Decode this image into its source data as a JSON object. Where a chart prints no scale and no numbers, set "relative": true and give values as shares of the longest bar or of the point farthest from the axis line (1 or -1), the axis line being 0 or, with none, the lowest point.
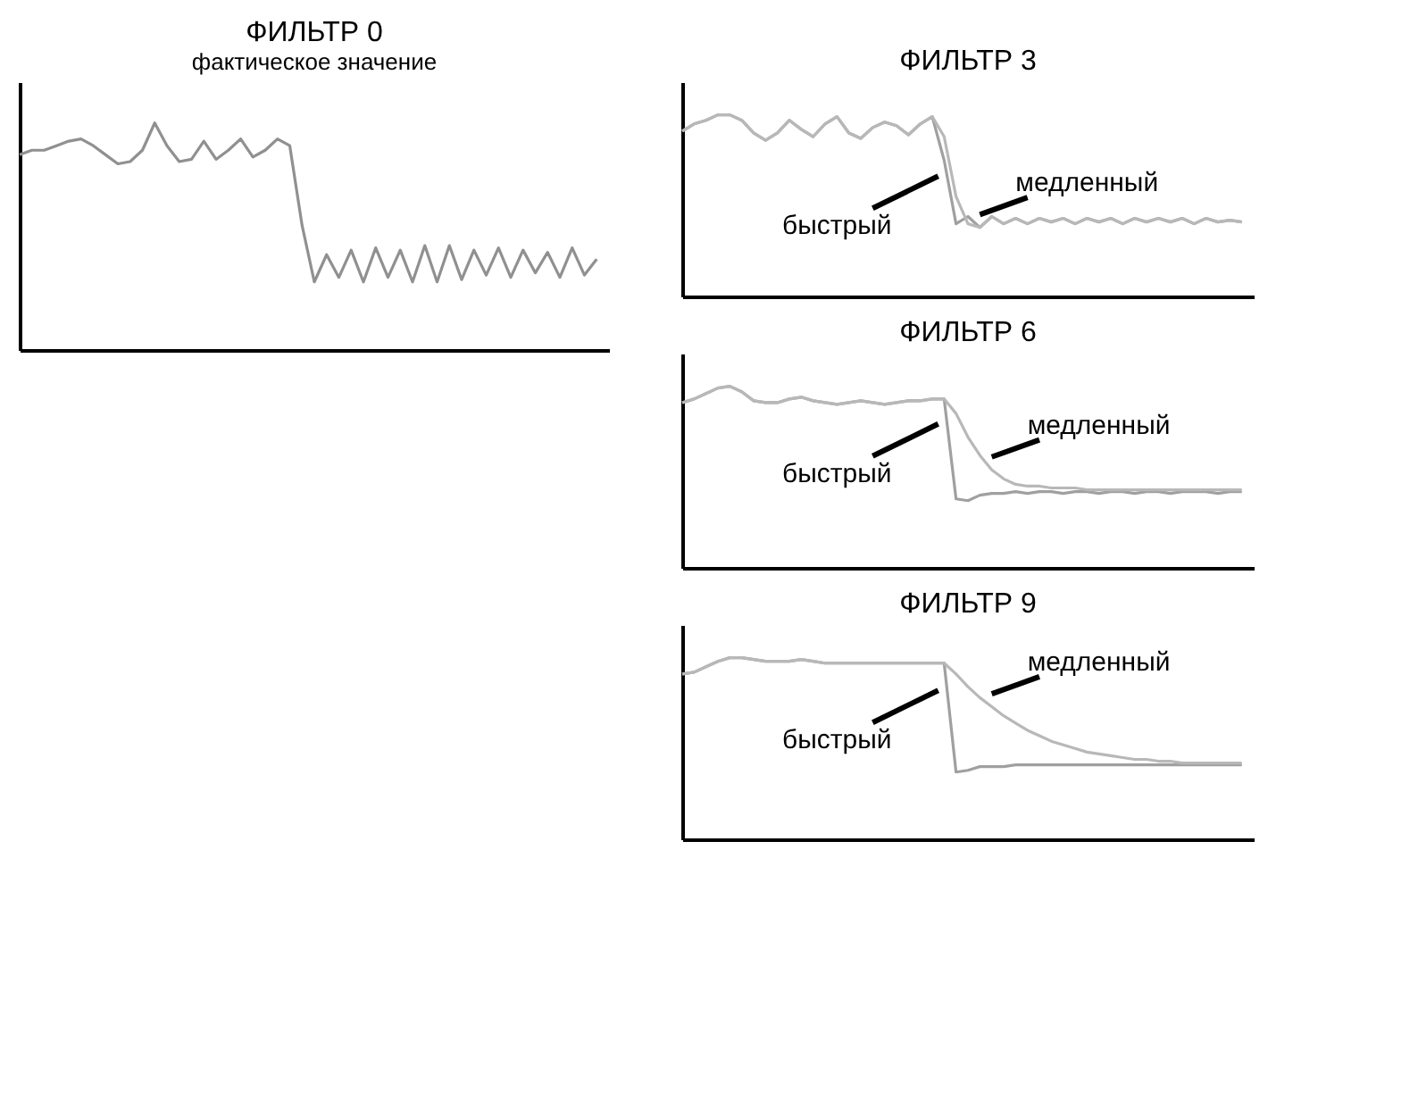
{
  "chart_data": [
    {
      "type": "line",
      "title": "ФИЛЬТР 0",
      "subtitle": "фактическое значение",
      "relative": true,
      "tick_labels": false,
      "grid": false,
      "categories": [
        null,
        null,
        null,
        null,
        null,
        null,
        null,
        null,
        null,
        null,
        null,
        null,
        null,
        null,
        null,
        null,
        null,
        null,
        null,
        null,
        null,
        null,
        null,
        null,
        null,
        null,
        null,
        null,
        null,
        null,
        null,
        null,
        null,
        null,
        null,
        null,
        null,
        null,
        null,
        null,
        null,
        null,
        null,
        null,
        null,
        null,
        null,
        null
      ],
      "color": "#909090",
      "values": [
        0.86,
        0.88,
        0.88,
        0.9,
        0.92,
        0.93,
        0.9,
        0.86,
        0.82,
        0.83,
        0.88,
        1.0,
        0.9,
        0.83,
        0.84,
        0.92,
        0.84,
        0.88,
        0.93,
        0.85,
        0.88,
        0.93,
        0.9,
        0.55,
        0.3,
        0.42,
        0.32,
        0.44,
        0.3,
        0.45,
        0.32,
        0.44,
        0.3,
        0.46,
        0.3,
        0.46,
        0.31,
        0.44,
        0.33,
        0.45,
        0.32,
        0.44,
        0.34,
        0.43,
        0.32,
        0.45,
        0.33,
        0.4
      ]
    },
    {
      "type": "line",
      "title": "ФИЛЬТР 3",
      "relative": true,
      "tick_labels": false,
      "grid": false,
      "categories": [
        null,
        null,
        null,
        null,
        null,
        null,
        null,
        null,
        null,
        null,
        null,
        null,
        null,
        null,
        null,
        null,
        null,
        null,
        null,
        null,
        null,
        null,
        null,
        null,
        null,
        null,
        null,
        null,
        null,
        null,
        null,
        null,
        null,
        null,
        null,
        null,
        null,
        null,
        null,
        null,
        null,
        null,
        null,
        null,
        null,
        null,
        null,
        null
      ],
      "series": [
        {
          "name": "быстрый",
          "color": "#a0a0a0",
          "values": [
            0.91,
            0.95,
            0.97,
            1.0,
            1.0,
            0.97,
            0.9,
            0.86,
            0.9,
            0.97,
            0.92,
            0.88,
            0.95,
            0.99,
            0.9,
            0.87,
            0.93,
            0.96,
            0.94,
            0.89,
            0.95,
            0.99,
            0.75,
            0.4,
            0.44,
            0.38,
            0.44,
            0.4,
            0.43,
            0.4,
            0.43,
            0.41,
            0.43,
            0.4,
            0.43,
            0.41,
            0.43,
            0.4,
            0.43,
            0.41,
            0.43,
            0.41,
            0.43,
            0.4,
            0.43,
            0.41,
            0.42,
            0.41
          ]
        },
        {
          "name": "медленный",
          "color": "#b8b8b8",
          "values": [
            0.91,
            0.95,
            0.97,
            1.0,
            1.0,
            0.97,
            0.9,
            0.86,
            0.9,
            0.97,
            0.92,
            0.88,
            0.95,
            0.99,
            0.9,
            0.87,
            0.93,
            0.96,
            0.94,
            0.89,
            0.95,
            0.99,
            0.88,
            0.55,
            0.4,
            0.38,
            0.44,
            0.4,
            0.43,
            0.4,
            0.43,
            0.41,
            0.43,
            0.4,
            0.43,
            0.41,
            0.43,
            0.4,
            0.43,
            0.41,
            0.43,
            0.41,
            0.43,
            0.4,
            0.43,
            0.41,
            0.42,
            0.41
          ]
        }
      ]
    },
    {
      "type": "line",
      "title": "ФИЛЬТР 6",
      "relative": true,
      "tick_labels": false,
      "grid": false,
      "categories": [
        null,
        null,
        null,
        null,
        null,
        null,
        null,
        null,
        null,
        null,
        null,
        null,
        null,
        null,
        null,
        null,
        null,
        null,
        null,
        null,
        null,
        null,
        null,
        null,
        null,
        null,
        null,
        null,
        null,
        null,
        null,
        null,
        null,
        null,
        null,
        null,
        null,
        null,
        null,
        null,
        null,
        null,
        null,
        null,
        null,
        null,
        null,
        null
      ],
      "series": [
        {
          "name": "быстрый",
          "color": "#a0a0a0",
          "values": [
            0.91,
            0.93,
            0.96,
            0.99,
            1.0,
            0.97,
            0.92,
            0.91,
            0.91,
            0.93,
            0.94,
            0.92,
            0.91,
            0.9,
            0.91,
            0.92,
            0.91,
            0.9,
            0.91,
            0.92,
            0.92,
            0.93,
            0.93,
            0.38,
            0.37,
            0.4,
            0.41,
            0.41,
            0.42,
            0.41,
            0.42,
            0.42,
            0.41,
            0.42,
            0.42,
            0.41,
            0.42,
            0.42,
            0.41,
            0.42,
            0.42,
            0.41,
            0.42,
            0.42,
            0.42,
            0.41,
            0.42,
            0.42
          ]
        },
        {
          "name": "медленный",
          "color": "#b8b8b8",
          "values": [
            0.91,
            0.93,
            0.96,
            0.99,
            1.0,
            0.97,
            0.92,
            0.91,
            0.91,
            0.93,
            0.94,
            0.92,
            0.91,
            0.9,
            0.91,
            0.92,
            0.91,
            0.9,
            0.91,
            0.92,
            0.92,
            0.93,
            0.93,
            0.85,
            0.72,
            0.62,
            0.54,
            0.49,
            0.46,
            0.45,
            0.45,
            0.44,
            0.44,
            0.44,
            0.43,
            0.43,
            0.43,
            0.43,
            0.43,
            0.43,
            0.43,
            0.43,
            0.43,
            0.43,
            0.43,
            0.43,
            0.43,
            0.43
          ]
        }
      ]
    },
    {
      "type": "line",
      "title": "ФИЛЬТР 9",
      "relative": true,
      "tick_labels": false,
      "grid": false,
      "categories": [
        null,
        null,
        null,
        null,
        null,
        null,
        null,
        null,
        null,
        null,
        null,
        null,
        null,
        null,
        null,
        null,
        null,
        null,
        null,
        null,
        null,
        null,
        null,
        null,
        null,
        null,
        null,
        null,
        null,
        null,
        null,
        null,
        null,
        null,
        null,
        null,
        null,
        null,
        null,
        null,
        null,
        null,
        null,
        null,
        null,
        null,
        null,
        null
      ],
      "series": [
        {
          "name": "быстрый",
          "color": "#a0a0a0",
          "values": [
            0.91,
            0.92,
            0.95,
            0.98,
            1.0,
            1.0,
            0.99,
            0.98,
            0.98,
            0.98,
            0.99,
            0.98,
            0.97,
            0.97,
            0.97,
            0.97,
            0.97,
            0.97,
            0.97,
            0.97,
            0.97,
            0.97,
            0.97,
            0.37,
            0.38,
            0.4,
            0.4,
            0.4,
            0.41,
            0.41,
            0.41,
            0.41,
            0.41,
            0.41,
            0.41,
            0.41,
            0.41,
            0.41,
            0.41,
            0.41,
            0.41,
            0.41,
            0.41,
            0.41,
            0.41,
            0.41,
            0.41,
            0.41
          ]
        },
        {
          "name": "медленный",
          "color": "#b8b8b8",
          "values": [
            0.91,
            0.92,
            0.95,
            0.98,
            1.0,
            1.0,
            0.99,
            0.98,
            0.98,
            0.98,
            0.99,
            0.98,
            0.97,
            0.97,
            0.97,
            0.97,
            0.97,
            0.97,
            0.97,
            0.97,
            0.97,
            0.97,
            0.97,
            0.91,
            0.84,
            0.78,
            0.73,
            0.68,
            0.64,
            0.6,
            0.57,
            0.54,
            0.52,
            0.5,
            0.48,
            0.47,
            0.46,
            0.45,
            0.44,
            0.44,
            0.43,
            0.43,
            0.42,
            0.42,
            0.42,
            0.42,
            0.42,
            0.42
          ]
        }
      ]
    }
  ]
}
